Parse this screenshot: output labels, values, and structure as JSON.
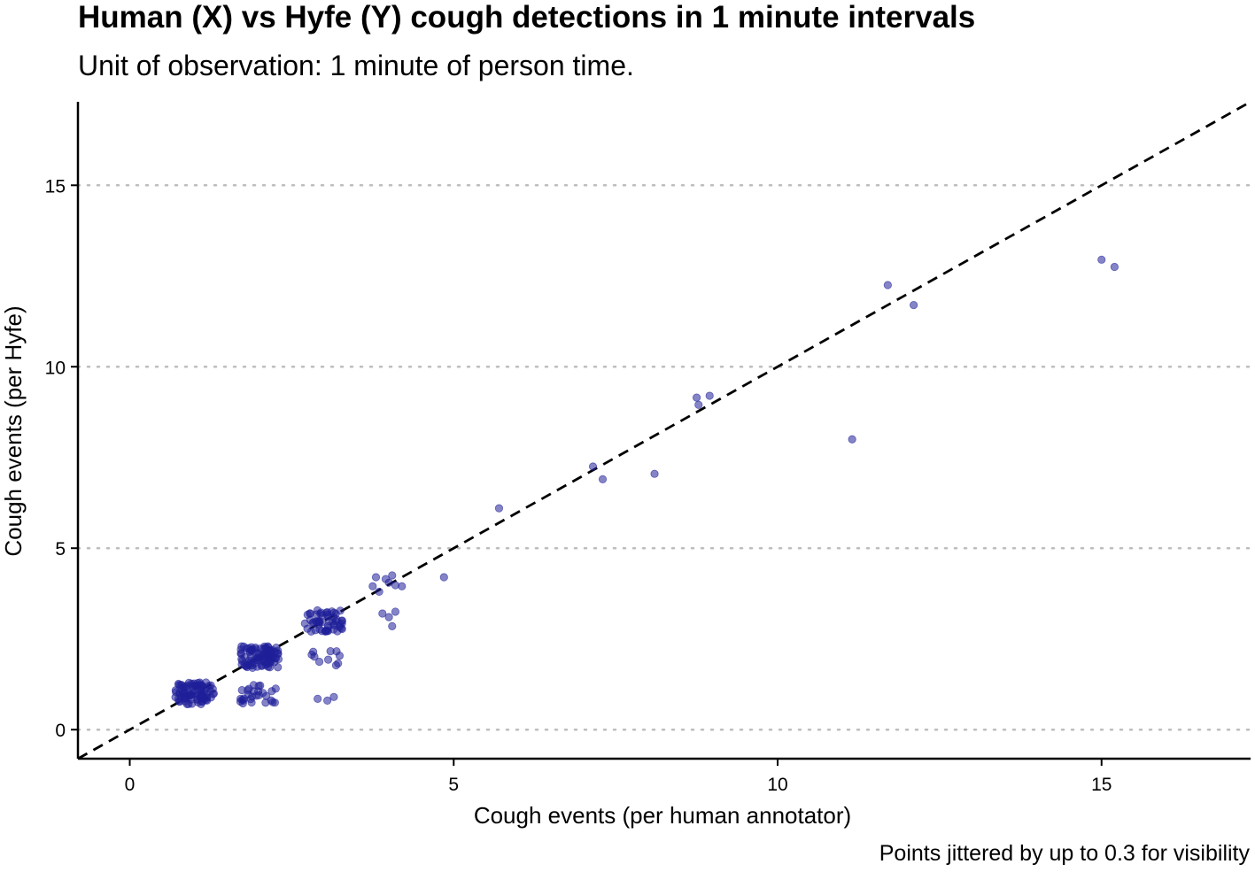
{
  "chart_data": {
    "type": "scatter",
    "title": "Human (X) vs Hyfe (Y) cough detections in 1 minute intervals",
    "subtitle": "Unit of observation: 1 minute of person time.",
    "caption": "Points jittered by up to 0.3 for visibility",
    "xlabel": "Cough events (per human annotator)",
    "ylabel": "Cough events (per Hyfe)",
    "xlim": [
      -0.8,
      17.3
    ],
    "ylim": [
      -0.8,
      17.3
    ],
    "x_ticks": [
      0,
      5,
      10,
      15
    ],
    "y_ticks": [
      0,
      5,
      10,
      15
    ],
    "grid": "horizontal dotted at y ticks",
    "reference_line": "dashed identity line y = x",
    "point_color": "#1f1f99",
    "clusters": [
      {
        "x": [
          0.7,
          1.3
        ],
        "y": [
          0.7,
          1.3
        ],
        "n": 90
      },
      {
        "x": [
          1.7,
          2.3
        ],
        "y": [
          1.7,
          2.3
        ],
        "n": 90
      },
      {
        "x": [
          1.7,
          2.3
        ],
        "y": [
          0.7,
          1.25
        ],
        "n": 28
      },
      {
        "x": [
          2.7,
          3.3
        ],
        "y": [
          2.7,
          3.3
        ],
        "n": 55
      },
      {
        "x": [
          2.75,
          3.3
        ],
        "y": [
          1.7,
          2.25
        ],
        "n": 10
      }
    ],
    "points": [
      {
        "x": 2.9,
        "y": 0.85
      },
      {
        "x": 3.05,
        "y": 0.8
      },
      {
        "x": 3.15,
        "y": 0.9
      },
      {
        "x": 3.75,
        "y": 3.95
      },
      {
        "x": 3.8,
        "y": 4.2
      },
      {
        "x": 3.85,
        "y": 3.8
      },
      {
        "x": 3.95,
        "y": 4.15
      },
      {
        "x": 4.0,
        "y": 4.05
      },
      {
        "x": 4.05,
        "y": 4.25
      },
      {
        "x": 4.1,
        "y": 3.98
      },
      {
        "x": 4.2,
        "y": 3.95
      },
      {
        "x": 3.9,
        "y": 3.2
      },
      {
        "x": 4.0,
        "y": 3.1
      },
      {
        "x": 4.1,
        "y": 3.25
      },
      {
        "x": 4.05,
        "y": 2.85
      },
      {
        "x": 4.85,
        "y": 4.2
      },
      {
        "x": 5.7,
        "y": 6.1
      },
      {
        "x": 7.15,
        "y": 7.25
      },
      {
        "x": 7.3,
        "y": 6.9
      },
      {
        "x": 8.1,
        "y": 7.05
      },
      {
        "x": 8.75,
        "y": 9.15
      },
      {
        "x": 8.78,
        "y": 8.95
      },
      {
        "x": 8.95,
        "y": 9.2
      },
      {
        "x": 11.15,
        "y": 8.0
      },
      {
        "x": 11.7,
        "y": 12.25
      },
      {
        "x": 12.1,
        "y": 11.7
      },
      {
        "x": 15.0,
        "y": 12.95
      },
      {
        "x": 15.2,
        "y": 12.75
      }
    ]
  }
}
